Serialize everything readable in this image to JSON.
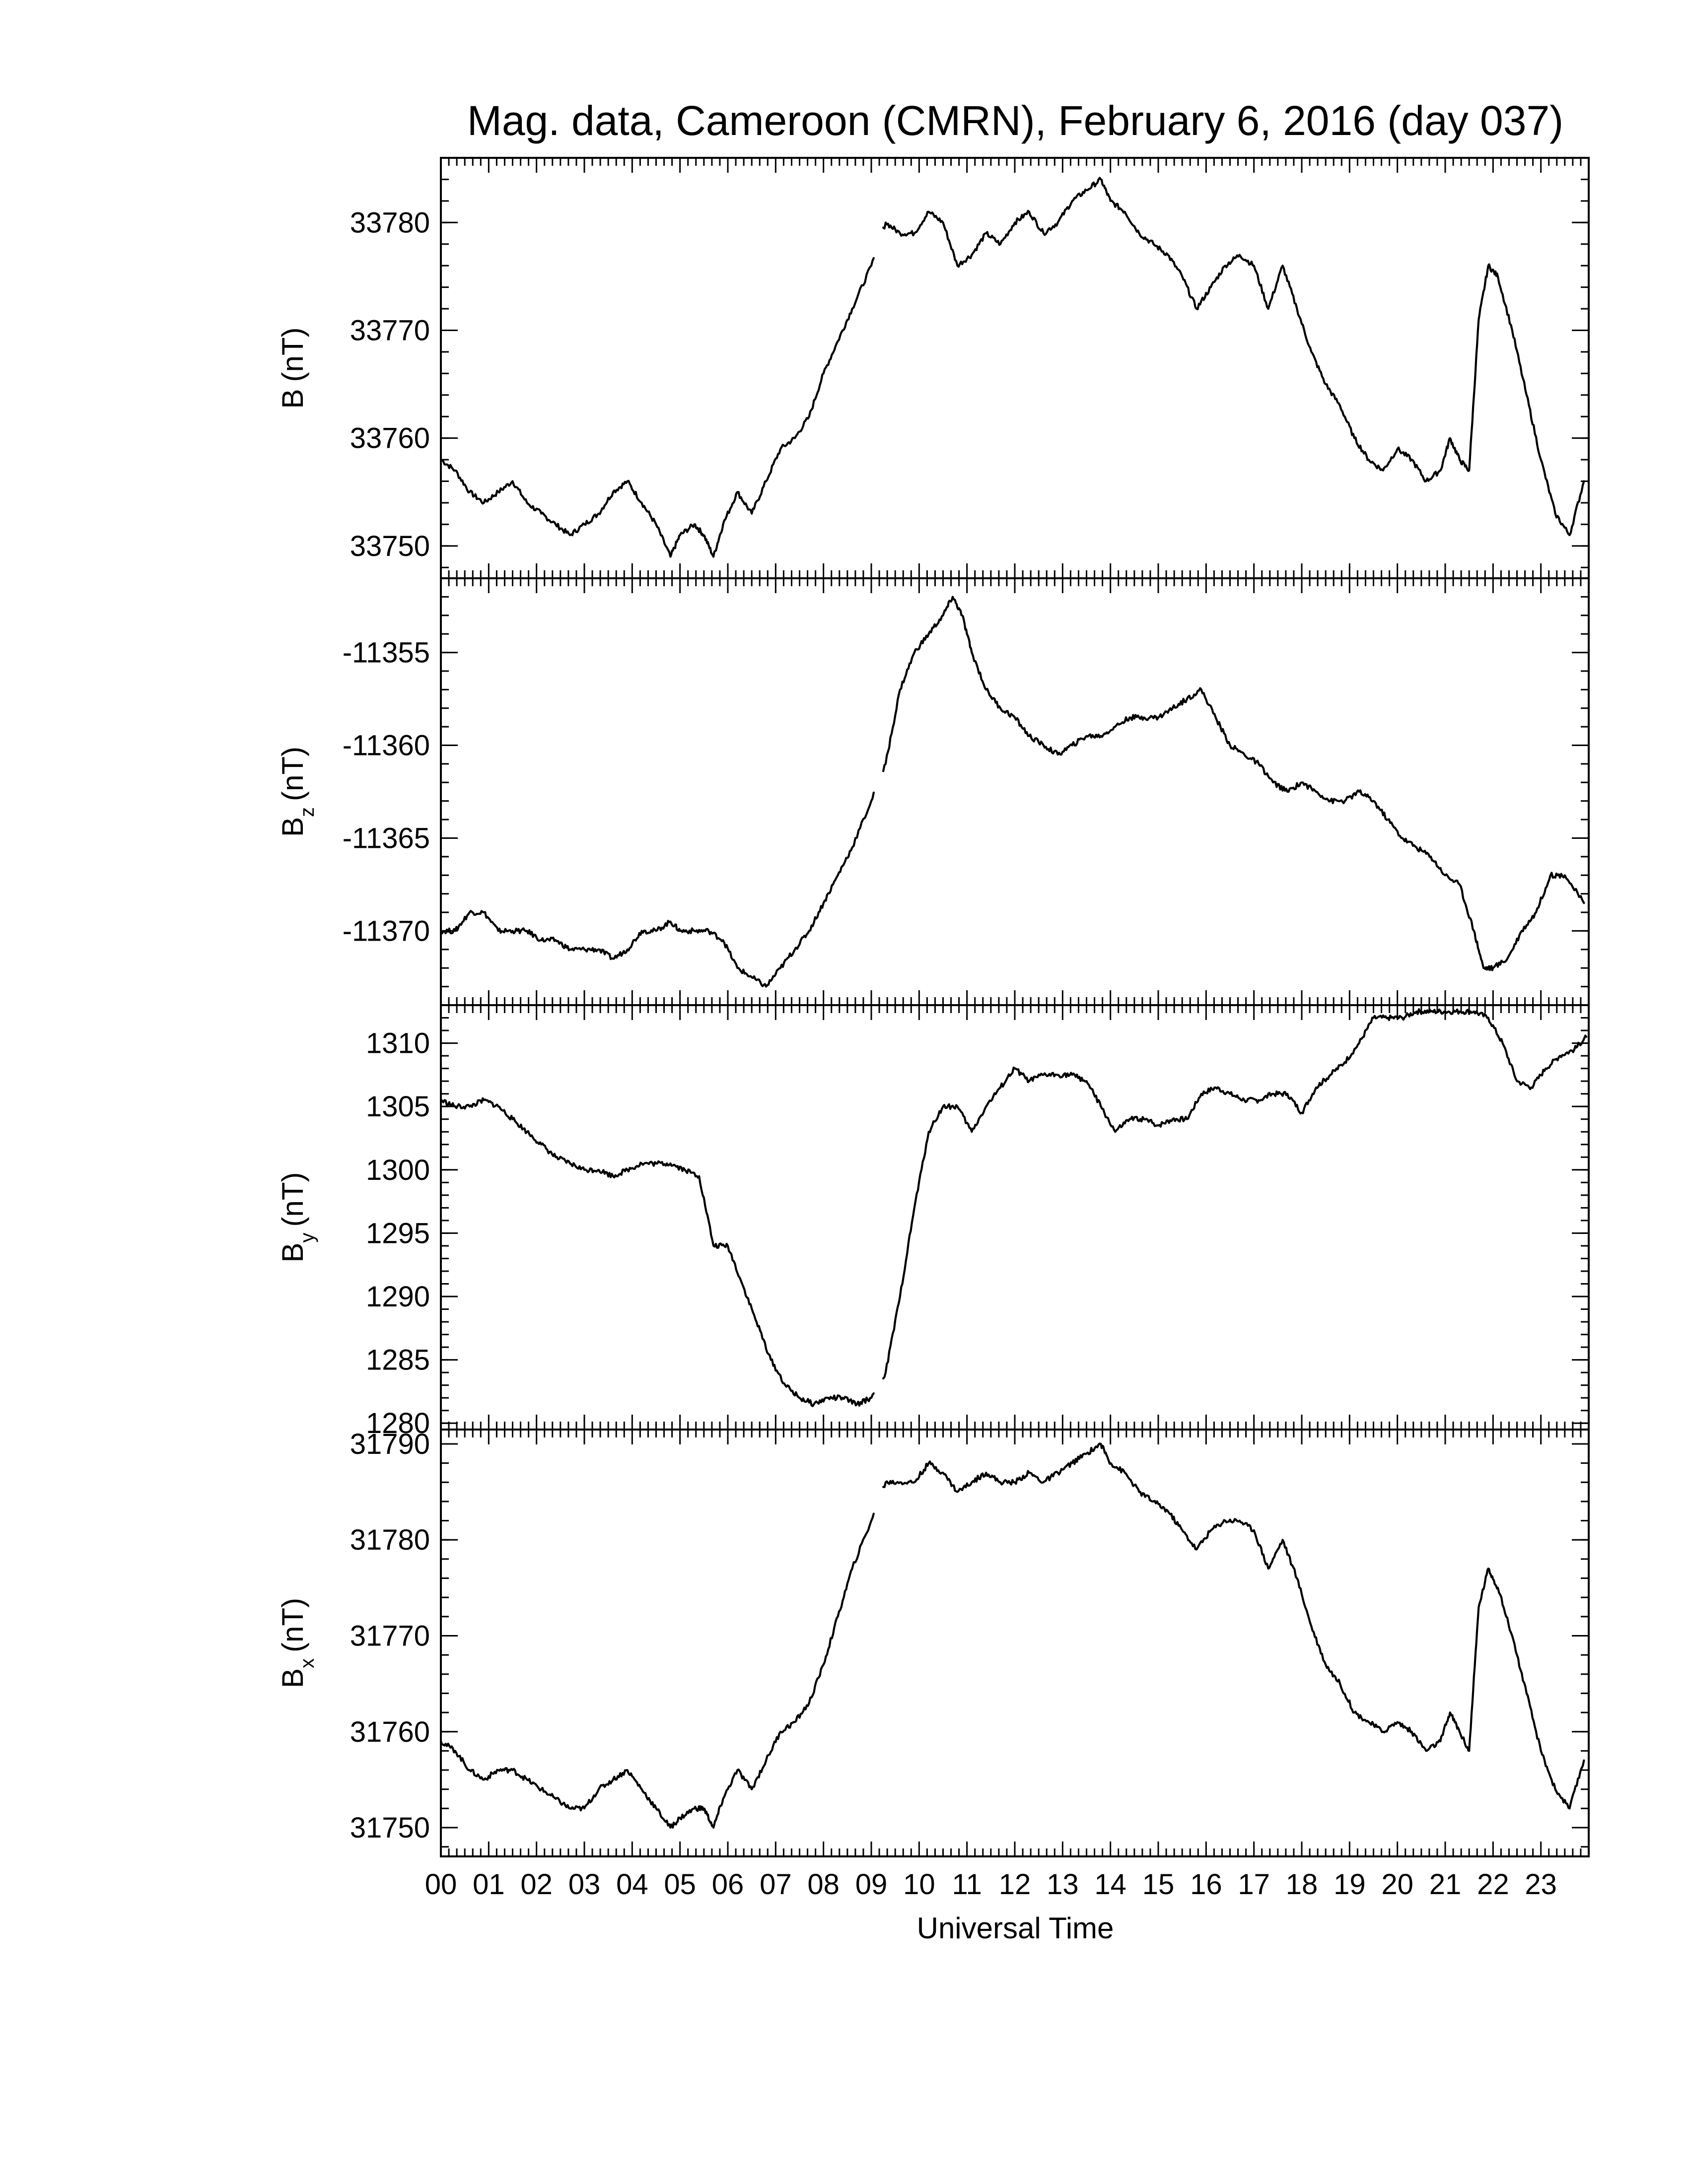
{
  "chart_data": {
    "type": "line",
    "title": "Mag. data, Cameroon (CMRN), February 6, 2016 (day 037)",
    "xlabel": "Universal Time",
    "x_tick_labels": [
      "00",
      "01",
      "02",
      "03",
      "04",
      "05",
      "06",
      "07",
      "08",
      "09",
      "10",
      "11",
      "12",
      "13",
      "14",
      "15",
      "16",
      "17",
      "18",
      "19",
      "20",
      "21",
      "22",
      "23"
    ],
    "x_range_hours": [
      0,
      24
    ],
    "data_gap_hours": [
      9.05,
      9.25
    ],
    "panels": [
      {
        "name": "B",
        "ylabel_main": "B",
        "ylabel_sub": "",
        "ylabel_unit": "(nT)",
        "ylim": [
          33747,
          33786
        ],
        "yticks": [
          33750,
          33760,
          33770,
          33780
        ],
        "series": {
          "x": [
            0,
            0.3,
            0.6,
            0.9,
            1.2,
            1.5,
            1.8,
            2.1,
            2.4,
            2.7,
            3.0,
            3.3,
            3.6,
            3.9,
            4.2,
            4.5,
            4.8,
            5.0,
            5.3,
            5.5,
            5.7,
            5.9,
            6.2,
            6.5,
            6.8,
            7.1,
            7.4,
            7.7,
            8.0,
            8.3,
            8.6,
            9.0,
            9.3,
            9.6,
            9.9,
            10.2,
            10.5,
            10.8,
            11.1,
            11.4,
            11.7,
            12.0,
            12.3,
            12.6,
            12.9,
            13.2,
            13.5,
            13.8,
            14.0,
            14.3,
            14.6,
            14.9,
            15.2,
            15.5,
            15.8,
            16.1,
            16.4,
            16.7,
            17.0,
            17.3,
            17.6,
            17.9,
            18.2,
            18.5,
            18.8,
            19.1,
            19.4,
            19.7,
            20.0,
            20.3,
            20.6,
            20.9,
            21.1,
            21.3,
            21.5,
            21.7,
            21.9,
            22.1,
            22.4,
            22.7,
            23.0,
            23.3,
            23.6,
            23.9
          ],
          "y": [
            33758,
            33757,
            33755,
            33754,
            33755,
            33756,
            33754,
            33753,
            33752,
            33751,
            33752,
            33753,
            33755,
            33756,
            33754,
            33752,
            33749,
            33751,
            33752,
            33751,
            33749,
            33752,
            33755,
            33753,
            33756,
            33759,
            33760,
            33762,
            33766,
            33769,
            33772,
            33776,
            33780,
            33779,
            33779,
            33781,
            33780,
            33776,
            33777,
            33779,
            33778,
            33780,
            33781,
            33779,
            33780,
            33782,
            33783,
            33784,
            33782,
            33781,
            33779,
            33778,
            33777,
            33775,
            33772,
            33774,
            33776,
            33777,
            33776,
            33772,
            33776,
            33772,
            33768,
            33765,
            33763,
            33760,
            33758,
            33757,
            33759,
            33758,
            33756,
            33757,
            33760,
            33758,
            33757,
            33771,
            33776,
            33775,
            33770,
            33764,
            33758,
            33753,
            33751,
            33756
          ]
        }
      },
      {
        "name": "Bz",
        "ylabel_main": "B",
        "ylabel_sub": "z",
        "ylabel_unit": "(nT)",
        "ylim": [
          -11374,
          -11351
        ],
        "yticks": [
          -11355,
          -11360,
          -11365,
          -11370
        ],
        "series": {
          "x": [
            0,
            0.3,
            0.6,
            0.9,
            1.2,
            1.5,
            1.8,
            2.1,
            2.4,
            2.7,
            3.0,
            3.3,
            3.6,
            3.9,
            4.2,
            4.5,
            4.8,
            5.0,
            5.3,
            5.6,
            5.9,
            6.2,
            6.5,
            6.8,
            7.1,
            7.4,
            7.7,
            8.0,
            8.3,
            8.6,
            9.0,
            9.3,
            9.6,
            9.9,
            10.2,
            10.5,
            10.7,
            10.9,
            11.1,
            11.4,
            11.7,
            12.0,
            12.3,
            12.6,
            12.9,
            13.2,
            13.5,
            13.8,
            14.1,
            14.4,
            14.7,
            15.0,
            15.3,
            15.6,
            15.9,
            16.2,
            16.5,
            16.8,
            17.1,
            17.4,
            17.7,
            18.0,
            18.3,
            18.6,
            18.9,
            19.2,
            19.5,
            19.8,
            20.1,
            20.4,
            20.7,
            21.0,
            21.3,
            21.6,
            21.8,
            22.0,
            22.3,
            22.6,
            22.9,
            23.2,
            23.5,
            23.9
          ],
          "y": [
            -11370,
            -11370,
            -11369,
            -11369,
            -11370,
            -11370,
            -11370,
            -11370.5,
            -11370.5,
            -11371,
            -11371,
            -11371,
            -11371.5,
            -11371,
            -11370,
            -11370,
            -11369.5,
            -11370,
            -11370,
            -11370,
            -11370.5,
            -11372,
            -11372.5,
            -11373,
            -11372,
            -11371,
            -11370,
            -11368.5,
            -11367,
            -11365.5,
            -11363,
            -11361,
            -11357,
            -11355,
            -11354,
            -11353,
            -11352,
            -11353,
            -11355,
            -11357,
            -11358,
            -11358.5,
            -11359.5,
            -11360,
            -11360.5,
            -11360,
            -11359.5,
            -11359.5,
            -11359,
            -11358.5,
            -11358.5,
            -11358.5,
            -11358,
            -11357.5,
            -11357,
            -11358.5,
            -11360,
            -11360.5,
            -11361,
            -11362,
            -11362.5,
            -11362,
            -11362.5,
            -11363,
            -11363,
            -11362.5,
            -11363,
            -11364,
            -11365,
            -11365.5,
            -11366,
            -11367,
            -11367.5,
            -11370,
            -11372,
            -11372,
            -11371.5,
            -11370,
            -11369,
            -11367,
            -11367,
            -11368.5
          ]
        }
      },
      {
        "name": "By",
        "ylabel_main": "B",
        "ylabel_sub": "y",
        "ylabel_unit": "(nT)",
        "ylim": [
          1279.5,
          1313
        ],
        "yticks": [
          1280,
          1285,
          1290,
          1295,
          1300,
          1305,
          1310
        ],
        "series": {
          "x": [
            0,
            0.3,
            0.6,
            0.9,
            1.2,
            1.5,
            1.8,
            2.1,
            2.4,
            2.7,
            3.0,
            3.3,
            3.6,
            3.9,
            4.2,
            4.5,
            4.8,
            5.1,
            5.4,
            5.7,
            6.0,
            6.3,
            6.6,
            6.9,
            7.2,
            7.5,
            7.8,
            8.1,
            8.4,
            8.7,
            9.0,
            9.3,
            9.6,
            9.9,
            10.2,
            10.5,
            10.8,
            11.1,
            11.4,
            11.7,
            12.0,
            12.3,
            12.6,
            12.9,
            13.2,
            13.5,
            13.8,
            14.1,
            14.4,
            14.7,
            15.0,
            15.3,
            15.6,
            15.9,
            16.2,
            16.5,
            16.8,
            17.1,
            17.4,
            17.7,
            18.0,
            18.3,
            18.6,
            18.9,
            19.2,
            19.5,
            19.8,
            20.1,
            20.4,
            20.7,
            21.0,
            21.3,
            21.6,
            21.9,
            22.2,
            22.5,
            22.8,
            23.1,
            23.4,
            23.7,
            23.95
          ],
          "y": [
            1305.5,
            1305,
            1305,
            1305.5,
            1305,
            1304,
            1303,
            1302,
            1301,
            1300.5,
            1300,
            1300,
            1299.5,
            1300,
            1300.5,
            1300.5,
            1300.5,
            1300,
            1299.5,
            1294,
            1294,
            1291,
            1288,
            1285,
            1283,
            1282,
            1281.5,
            1282,
            1282,
            1281.5,
            1282,
            1284,
            1290,
            1297,
            1303,
            1305,
            1305,
            1303,
            1305,
            1306.5,
            1308,
            1307,
            1307.5,
            1307.5,
            1307.5,
            1307,
            1305,
            1303,
            1304,
            1304,
            1303.5,
            1304,
            1304,
            1306,
            1306.5,
            1306,
            1305.5,
            1305.5,
            1306,
            1306,
            1304.5,
            1306.5,
            1307.5,
            1308.5,
            1310,
            1312,
            1312,
            1312,
            1312.5,
            1312.5,
            1312.5,
            1312.5,
            1312.5,
            1312,
            1310,
            1307,
            1306.5,
            1308,
            1309,
            1309.5,
            1310.5
          ]
        }
      },
      {
        "name": "Bx",
        "ylabel_main": "B",
        "ylabel_sub": "x",
        "ylabel_unit": "(nT)",
        "ylim": [
          31747,
          31791.5
        ],
        "yticks": [
          31750,
          31760,
          31770,
          31780,
          31790
        ],
        "series": {
          "x": [
            0,
            0.3,
            0.6,
            0.9,
            1.2,
            1.5,
            1.8,
            2.1,
            2.4,
            2.7,
            3.0,
            3.3,
            3.6,
            3.9,
            4.2,
            4.5,
            4.8,
            5.0,
            5.3,
            5.5,
            5.7,
            5.9,
            6.2,
            6.5,
            6.8,
            7.1,
            7.4,
            7.7,
            8.0,
            8.3,
            8.6,
            9.0,
            9.3,
            9.6,
            9.9,
            10.2,
            10.5,
            10.8,
            11.1,
            11.4,
            11.7,
            12.0,
            12.3,
            12.6,
            12.9,
            13.2,
            13.5,
            13.8,
            14.0,
            14.3,
            14.6,
            14.9,
            15.2,
            15.5,
            15.8,
            16.1,
            16.4,
            16.7,
            17.0,
            17.3,
            17.6,
            17.9,
            18.2,
            18.5,
            18.8,
            19.1,
            19.4,
            19.7,
            20.0,
            20.3,
            20.6,
            20.9,
            21.1,
            21.3,
            21.5,
            21.7,
            21.9,
            22.1,
            22.4,
            22.7,
            23.0,
            23.3,
            23.6,
            23.9
          ],
          "y": [
            31759,
            31758,
            31756,
            31755,
            31756,
            31756,
            31755,
            31754,
            31753,
            31752,
            31752,
            31754,
            31755,
            31756,
            31754,
            31752,
            31750,
            31751,
            31752,
            31752,
            31750,
            31753,
            31756,
            31754,
            31757,
            31760,
            31761,
            31763,
            31767,
            31772,
            31777,
            31782,
            31786,
            31786,
            31786,
            31788,
            31787,
            31785,
            31786,
            31787,
            31786,
            31786,
            31787,
            31786,
            31787,
            31788,
            31789,
            31790,
            31788,
            31787,
            31785,
            31784,
            31783,
            31781,
            31779,
            31781,
            31782,
            31782,
            31781,
            31777,
            31780,
            31776,
            31771,
            31767,
            31765,
            31762,
            31761,
            31760,
            31761,
            31760,
            31758,
            31759,
            31762,
            31760,
            31758,
            31773,
            31777,
            31775,
            31770,
            31764,
            31758,
            31754,
            31752,
            31757
          ]
        }
      }
    ]
  }
}
